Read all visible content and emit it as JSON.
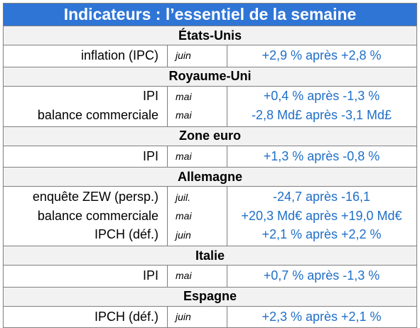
{
  "title": "Indicateurs : l’essentiel de la semaine",
  "sections": [
    {
      "name": "États-Unis",
      "rows": [
        {
          "label": "inflation (IPC)",
          "month": "juin",
          "value": "+2,9 % après +2,8 %"
        }
      ]
    },
    {
      "name": "Royaume-Uni",
      "rows": [
        {
          "label": "IPI",
          "month": "mai",
          "value": "+0,4 % après -1,3 %"
        },
        {
          "label": "balance commerciale",
          "month": "mai",
          "value": "-2,8 Md£ après -3,1 Md£"
        }
      ]
    },
    {
      "name": "Zone euro",
      "rows": [
        {
          "label": "IPI",
          "month": "mai",
          "value": "+1,3 % après -0,8 %"
        }
      ]
    },
    {
      "name": "Allemagne",
      "rows": [
        {
          "label": "enquête ZEW (persp.)",
          "month": "juil.",
          "value": "-24,7 après -16,1"
        },
        {
          "label": "balance commerciale",
          "month": "mai",
          "value": "+20,3 Md€ après +19,0 Md€"
        },
        {
          "label": "IPCH (déf.)",
          "month": "juin",
          "value": "+2,1 % après +2,2 %"
        }
      ]
    },
    {
      "name": "Italie",
      "rows": [
        {
          "label": "IPI",
          "month": "mai",
          "value": "+0,7 % après -1,3 %"
        }
      ]
    },
    {
      "name": "Espagne",
      "rows": [
        {
          "label": "IPCH (déf.)",
          "month": "juin",
          "value": "+2,3 % après +2,1 %"
        }
      ]
    }
  ],
  "colors": {
    "header_bg": "#2f75d6",
    "value_text": "#1f6fc8",
    "section_bg": "#f2f2f2"
  }
}
